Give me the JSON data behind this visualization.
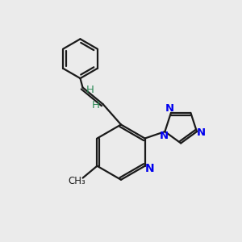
{
  "bg_color": "#ebebeb",
  "bond_color": "#1a1a1a",
  "N_color": "#0000ee",
  "H_color": "#2e8b57",
  "line_width": 1.6,
  "figsize": [
    3.0,
    3.0
  ],
  "dpi": 100,
  "xlim": [
    0,
    10
  ],
  "ylim": [
    0,
    10
  ]
}
